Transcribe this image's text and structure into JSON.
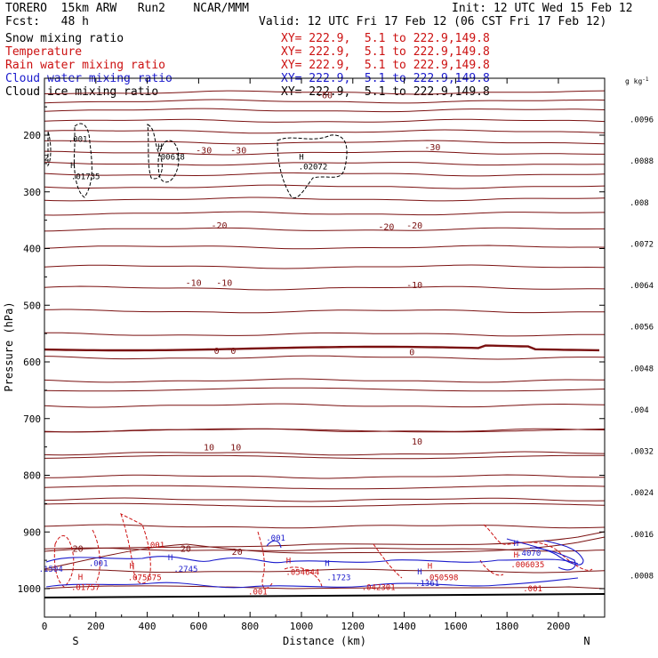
{
  "header": {
    "model": "TORERO  15km ARW   Run2    NCAR/MMM",
    "init": "Init: 12 UTC Wed 15 Feb 12",
    "fcst": "Fcst:   48 h",
    "valid": "Valid: 12 UTC Fri 17 Feb 12 (06 CST Fri 17 Feb 12)"
  },
  "legend": [
    {
      "label": "Snow mixing ratio",
      "xy": "XY= 222.9,  5.1 to 222.9,149.8",
      "color": "#000000"
    },
    {
      "label": "Temperature",
      "xy": "XY= 222.9,  5.1 to 222.9,149.8",
      "color": "#cc1111"
    },
    {
      "label": "Rain water mixing ratio",
      "xy": "XY= 222.9,  5.1 to 222.9,149.8",
      "color": "#cc1111"
    },
    {
      "label": "Cloud water mixing ratio",
      "xy": "XY= 222.9,  5.1 to 222.9,149.8",
      "color": "#1a1acc"
    },
    {
      "label": "Cloud ice mixing ratio",
      "xy": "XY= 222.9,  5.1 to 222.9,149.8",
      "color": "#000000"
    }
  ],
  "chart_data": {
    "type": "contour",
    "xlabel": "Distance (km)",
    "ylabel": "Pressure (hPa)",
    "xlim": [
      0,
      2180
    ],
    "ylim": [
      1015,
      95
    ],
    "x_ticks": [
      0,
      200,
      400,
      600,
      800,
      1000,
      1200,
      1400,
      1600,
      1800,
      2000
    ],
    "y_ticks": [
      200,
      300,
      400,
      500,
      600,
      700,
      800,
      900,
      1000
    ],
    "end_labels": {
      "left": "S",
      "right": "N"
    },
    "colorbar": {
      "unit": "g kg",
      "unit_exp": "-1",
      "ticks": [
        ".0096",
        ".0088",
        ".008",
        ".0072",
        ".0064",
        ".0056",
        ".0048",
        ".004",
        ".0032",
        ".0024",
        ".0016",
        ".0008"
      ],
      "colors": [
        "#2a2a2a",
        "#3c3c3c",
        "#505050",
        "#646464",
        "#787878",
        "#8c8c8c",
        "#a0a0a0",
        "#b4b4b4",
        "#c6c6c6",
        "#d6d6d6",
        "#e4e4e4",
        "#f0f0f0",
        "#ffffff"
      ]
    },
    "temperature_labels": [
      {
        "text": "-60",
        "x": 1090,
        "p": 135
      },
      {
        "text": "-30",
        "x": 620,
        "p": 232
      },
      {
        "text": "-30",
        "x": 755,
        "p": 232
      },
      {
        "text": "-30",
        "x": 1510,
        "p": 227
      },
      {
        "text": "-20",
        "x": 680,
        "p": 365
      },
      {
        "text": "-20",
        "x": 1330,
        "p": 367
      },
      {
        "text": "-20",
        "x": 1440,
        "p": 365
      },
      {
        "text": "-10",
        "x": 580,
        "p": 466
      },
      {
        "text": "-10",
        "x": 700,
        "p": 466
      },
      {
        "text": "-10",
        "x": 1440,
        "p": 470
      },
      {
        "text": "0",
        "x": 670,
        "p": 586
      },
      {
        "text": "0",
        "x": 735,
        "p": 586
      },
      {
        "text": "0",
        "x": 1430,
        "p": 588
      },
      {
        "text": "10",
        "x": 640,
        "p": 756
      },
      {
        "text": "10",
        "x": 745,
        "p": 756
      },
      {
        "text": "10",
        "x": 1450,
        "p": 746
      },
      {
        "text": "20",
        "x": 130,
        "p": 935
      },
      {
        "text": "20",
        "x": 550,
        "p": 935
      },
      {
        "text": "20",
        "x": 750,
        "p": 940
      }
    ],
    "ice_labels": [
      {
        "text": ".001",
        "x": 130,
        "p": 212
      },
      {
        "text": "H",
        "x": 110,
        "p": 258
      },
      {
        "text": ".01735",
        "x": 160,
        "p": 278
      },
      {
        "text": "H",
        "x": 450,
        "p": 225
      },
      {
        "text": ".00618",
        "x": 490,
        "p": 243
      },
      {
        "text": "H",
        "x": 1000,
        "p": 243
      },
      {
        "text": ".02072",
        "x": 1045,
        "p": 260
      },
      {
        "text": "2",
        "x": 8,
        "p": 245
      }
    ],
    "rain_labels": [
      {
        "text": "H",
        "x": 140,
        "p": 984
      },
      {
        "text": ".01757",
        "x": 160,
        "p": 1002
      },
      {
        "text": "H",
        "x": 340,
        "p": 965
      },
      {
        "text": ".075675",
        "x": 390,
        "p": 985
      },
      {
        "text": "H",
        "x": 950,
        "p": 955
      },
      {
        "text": ".054644",
        "x": 1005,
        "p": 976
      },
      {
        "text": ".042301",
        "x": 1300,
        "p": 1002
      },
      {
        "text": "H",
        "x": 1500,
        "p": 965
      },
      {
        "text": ".050598",
        "x": 1545,
        "p": 985
      },
      {
        "text": ".001",
        "x": 430,
        "p": 928
      },
      {
        "text": ".001",
        "x": 830,
        "p": 1010
      },
      {
        "text": ".001",
        "x": 1900,
        "p": 1005
      },
      {
        "text": "H",
        "x": 1835,
        "p": 945
      },
      {
        "text": ".006035",
        "x": 1880,
        "p": 962
      }
    ],
    "cloudwater_labels": [
      {
        "text": ".1504",
        "x": 25,
        "p": 970
      },
      {
        "text": ".001",
        "x": 210,
        "p": 960
      },
      {
        "text": "H",
        "x": 490,
        "p": 950
      },
      {
        "text": ".2745",
        "x": 550,
        "p": 970
      },
      {
        "text": ".001",
        "x": 900,
        "p": 915
      },
      {
        "text": "H",
        "x": 1100,
        "p": 960
      },
      {
        "text": ".1723",
        "x": 1145,
        "p": 985
      },
      {
        "text": "H",
        "x": 1460,
        "p": 975
      },
      {
        "text": ".1361",
        "x": 1490,
        "p": 995
      },
      {
        "text": "H",
        "x": 1835,
        "p": 925
      },
      {
        "text": ".4070",
        "x": 1885,
        "p": 942
      }
    ]
  }
}
